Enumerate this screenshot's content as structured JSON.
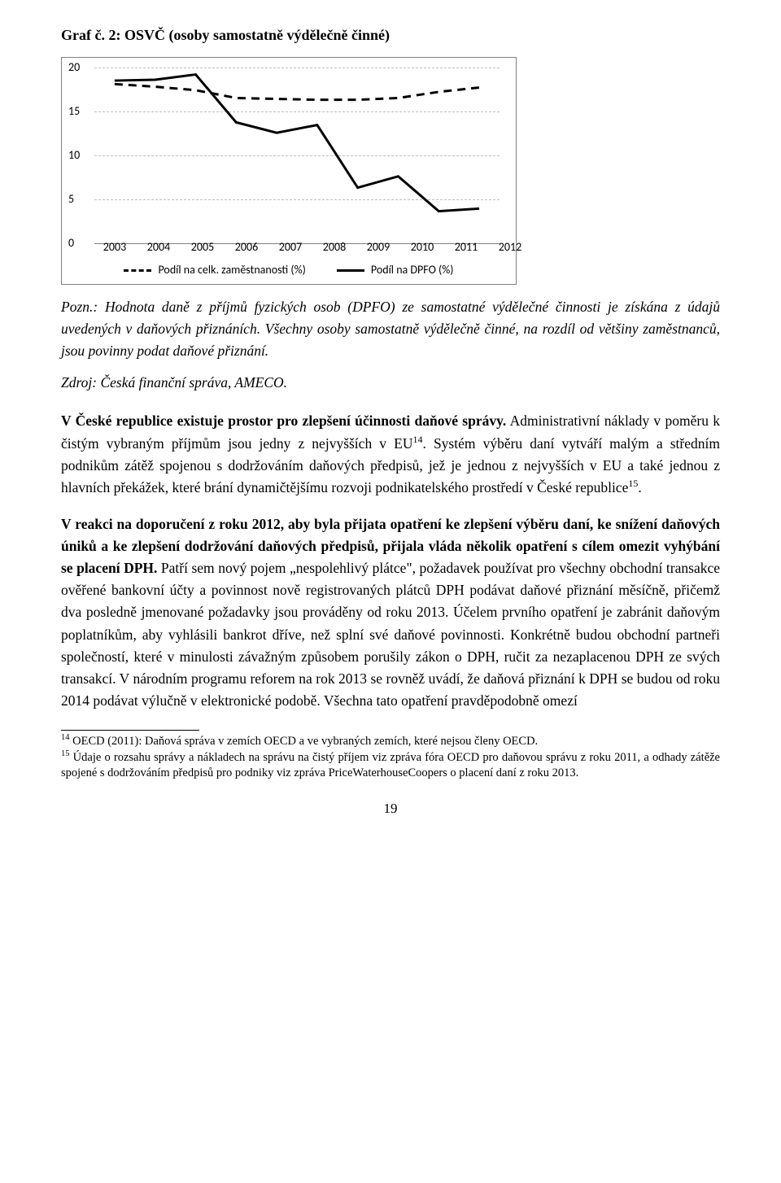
{
  "chart": {
    "type": "line",
    "title": "Graf č. 2: OSVČ (osoby samostatně výdělečně činné)",
    "years": [
      "2003",
      "2004",
      "2005",
      "2006",
      "2007",
      "2008",
      "2009",
      "2010",
      "2011",
      "2012"
    ],
    "ylim": [
      0,
      20
    ],
    "ytick_step": 5,
    "yticks": [
      "0",
      "5",
      "10",
      "15",
      "20"
    ],
    "grid_color": "#bfbfbf",
    "axis_color": "#808080",
    "background_color": "#ffffff",
    "series": [
      {
        "name": "Podíl na celk. zaměstnanosti (%)",
        "style": "dashed",
        "color": "#000000",
        "width": 3,
        "values": [
          18.1,
          17.8,
          17.4,
          16.5,
          16.4,
          16.3,
          16.3,
          16.5,
          17.2,
          17.7
        ]
      },
      {
        "name": "Podíl na DPFO (%)",
        "style": "solid",
        "color": "#000000",
        "width": 3,
        "values": [
          18.5,
          18.6,
          19.2,
          13.7,
          12.5,
          13.4,
          6.2,
          7.5,
          3.5,
          3.8
        ]
      }
    ],
    "legend_labels": [
      "Podíl na celk. zaměstnanosti (%)",
      "Podíl na DPFO (%)"
    ],
    "axis_font_family": "Calibri",
    "axis_fontsize": 14
  },
  "note": {
    "pozn": "Pozn.: Hodnota daně z příjmů fyzických osob (DPFO) ze samostatné výdělečné činnosti je získána z údajů uvedených v daňových přiznáních. Všechny osoby samostatně výdělečně činné, na rozdíl od většiny zaměstnanců, jsou povinny podat daňové přiznání.",
    "zdroj": "Zdroj: Česká finanční správa, AMECO."
  },
  "para1": {
    "bold": "V České republice existuje prostor pro zlepšení účinnosti daňové správy.",
    "rest1": " Administrativní náklady v poměru k čistým vybraným příjmům jsou jedny z nejvyšších v EU",
    "fn14": "14",
    "rest2": ". Systém výběru daní vytváří malým a středním podnikům zátěž spojenou s dodržováním daňových předpisů, jež je jednou z nejvyšších v EU a také jednou z hlavních překážek, které brání dynamičtějšímu rozvoji podnikatelského prostředí v České republice",
    "fn15": "15",
    "rest3": "."
  },
  "para2": {
    "bold": "V reakci na doporučení z roku 2012, aby byla přijata opatření ke zlepšení výběru daní, ke snížení daňových úniků a ke zlepšení dodržování daňových předpisů, přijala vláda několik opatření s cílem omezit vyhýbání se placení DPH.",
    "rest": " Patří sem nový pojem „nespolehlivý plátce\", požadavek používat pro všechny obchodní transakce ověřené bankovní účty a povinnost nově registrovaných plátců DPH podávat daňové přiznání měsíčně, přičemž dva posledně jmenované požadavky jsou prováděny od roku 2013. Účelem prvního opatření je zabránit daňovým poplatníkům, aby vyhlásili bankrot dříve, než splní své daňové povinnosti. Konkrétně budou obchodní partneři společností, které v minulosti závažným způsobem porušily zákon o DPH, ručit za nezaplacenou DPH ze svých transakcí. V národním programu reforem na rok 2013 se rovněž uvádí, že daňová přiznání k DPH se budou od roku 2014 podávat výlučně v elektronické podobě. Všechna tato opatření pravděpodobně omezí"
  },
  "footnotes": {
    "f14": "OECD (2011): Daňová správa v zemích OECD a ve vybraných zemích, které nejsou členy OECD.",
    "f15": "Údaje o rozsahu správy a nákladech na správu na čistý příjem viz zpráva fóra OECD pro daňovou správu z roku 2011, a odhady zátěže spojené s dodržováním předpisů pro podniky viz zpráva PriceWaterhouseCoopers o placení daní z roku 2013."
  },
  "page_number": "19"
}
